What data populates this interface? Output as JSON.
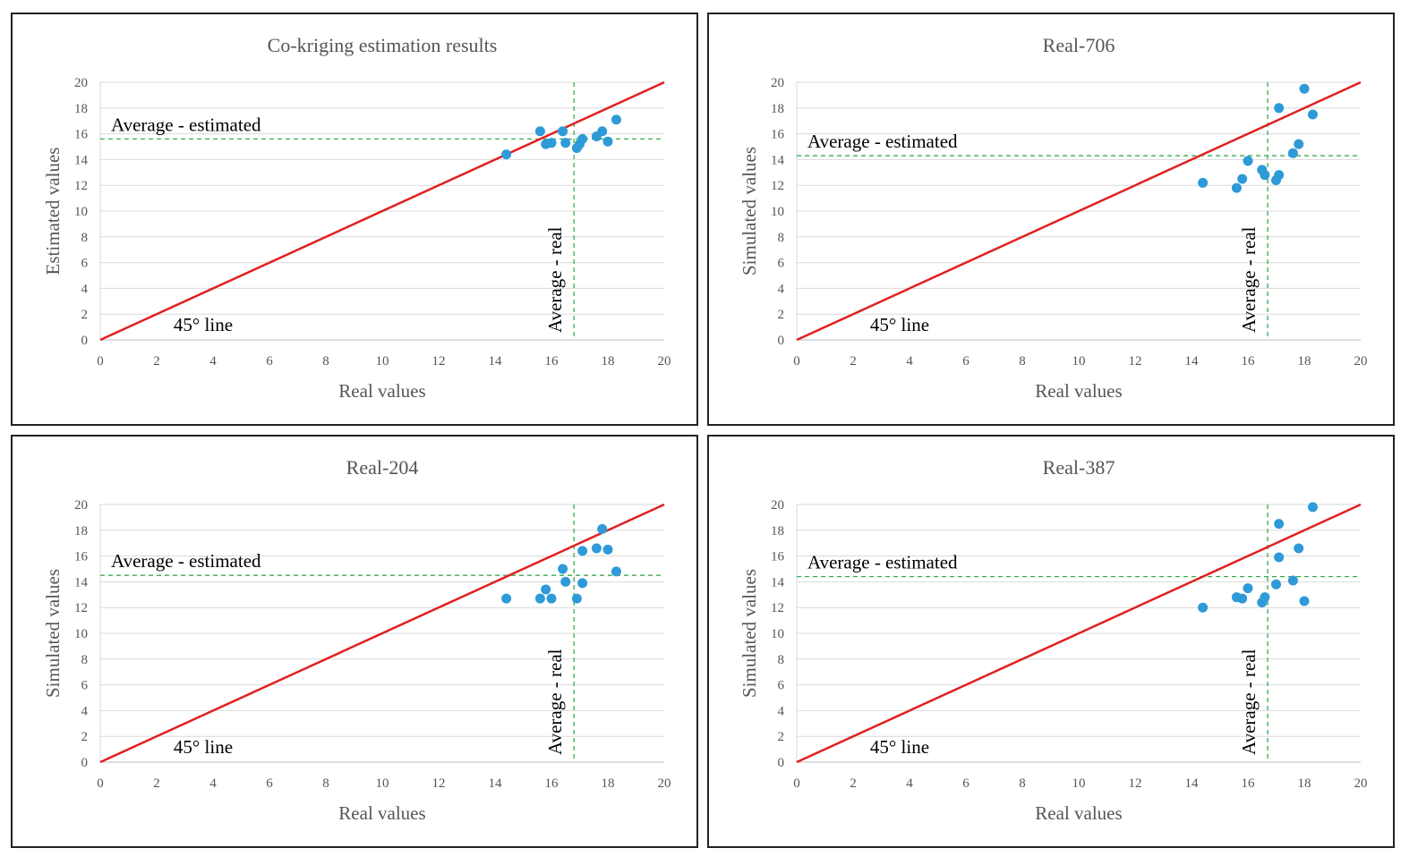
{
  "chart_data": [
    {
      "type": "scatter",
      "title": "Co-kriging  estimation  results",
      "xlabel": "Real values",
      "ylabel": "Estimated  values",
      "xlim": [
        0,
        20
      ],
      "ylim": [
        0,
        20
      ],
      "xticks": [
        "0",
        "2",
        "4",
        "6",
        "8",
        "10",
        "12",
        "14",
        "16",
        "18",
        "20"
      ],
      "yticks": [
        "0",
        "2",
        "4",
        "6",
        "8",
        "10",
        "12",
        "14",
        "16",
        "18",
        "20"
      ],
      "grid": true,
      "reference_line": {
        "label": "45° line",
        "from": [
          0,
          0
        ],
        "to": [
          20,
          20
        ],
        "color": "#e02020"
      },
      "avg_estimated": {
        "label": "Average - estimated",
        "value": 15.6
      },
      "avg_real": {
        "label": "Average - real",
        "value": 16.8
      },
      "point_color": "#2e9ad8",
      "points": [
        {
          "x": 14.4,
          "y": 14.4
        },
        {
          "x": 15.6,
          "y": 16.2
        },
        {
          "x": 15.8,
          "y": 15.2
        },
        {
          "x": 16.0,
          "y": 15.3
        },
        {
          "x": 16.4,
          "y": 16.2
        },
        {
          "x": 16.5,
          "y": 15.3
        },
        {
          "x": 16.9,
          "y": 14.9
        },
        {
          "x": 17.0,
          "y": 15.2
        },
        {
          "x": 17.1,
          "y": 15.6
        },
        {
          "x": 17.6,
          "y": 15.8
        },
        {
          "x": 17.8,
          "y": 16.2
        },
        {
          "x": 18.0,
          "y": 15.4
        },
        {
          "x": 18.3,
          "y": 17.1
        }
      ]
    },
    {
      "type": "scatter",
      "title": "Real-706",
      "xlabel": "Real values",
      "ylabel": "Simulated  values",
      "xlim": [
        0,
        20
      ],
      "ylim": [
        0,
        20
      ],
      "xticks": [
        "0",
        "2",
        "4",
        "6",
        "8",
        "10",
        "12",
        "14",
        "16",
        "18",
        "20"
      ],
      "yticks": [
        "0",
        "2",
        "4",
        "6",
        "8",
        "10",
        "12",
        "14",
        "16",
        "18",
        "20"
      ],
      "grid": true,
      "reference_line": {
        "label": "45° line",
        "from": [
          0,
          0
        ],
        "to": [
          20,
          20
        ],
        "color": "#e02020"
      },
      "avg_estimated": {
        "label": "Average - estimated",
        "value": 14.3
      },
      "avg_real": {
        "label": "Average - real",
        "value": 16.7
      },
      "point_color": "#2e9ad8",
      "points": [
        {
          "x": 14.4,
          "y": 12.2
        },
        {
          "x": 15.6,
          "y": 11.8
        },
        {
          "x": 15.8,
          "y": 12.5
        },
        {
          "x": 16.0,
          "y": 13.9
        },
        {
          "x": 16.5,
          "y": 13.2
        },
        {
          "x": 16.6,
          "y": 12.8
        },
        {
          "x": 17.0,
          "y": 12.4
        },
        {
          "x": 17.1,
          "y": 12.8
        },
        {
          "x": 17.1,
          "y": 18.0
        },
        {
          "x": 17.6,
          "y": 14.5
        },
        {
          "x": 17.8,
          "y": 15.2
        },
        {
          "x": 18.0,
          "y": 19.5
        },
        {
          "x": 18.3,
          "y": 17.5
        }
      ]
    },
    {
      "type": "scatter",
      "title": "Real-204",
      "xlabel": "Real values",
      "ylabel": "Simulated  values",
      "xlim": [
        0,
        20
      ],
      "ylim": [
        0,
        20
      ],
      "xticks": [
        "0",
        "2",
        "4",
        "6",
        "8",
        "10",
        "12",
        "14",
        "16",
        "18",
        "20"
      ],
      "yticks": [
        "0",
        "2",
        "4",
        "6",
        "8",
        "10",
        "12",
        "14",
        "16",
        "18",
        "20"
      ],
      "grid": true,
      "reference_line": {
        "label": "45° line",
        "from": [
          0,
          0
        ],
        "to": [
          20,
          20
        ],
        "color": "#e02020"
      },
      "avg_estimated": {
        "label": "Average - estimated",
        "value": 14.5
      },
      "avg_real": {
        "label": "Average - real",
        "value": 16.8
      },
      "point_color": "#2e9ad8",
      "points": [
        {
          "x": 14.4,
          "y": 12.7
        },
        {
          "x": 15.6,
          "y": 12.7
        },
        {
          "x": 15.8,
          "y": 13.4
        },
        {
          "x": 16.0,
          "y": 12.7
        },
        {
          "x": 16.4,
          "y": 15.0
        },
        {
          "x": 16.5,
          "y": 14.0
        },
        {
          "x": 16.9,
          "y": 12.7
        },
        {
          "x": 17.1,
          "y": 13.9
        },
        {
          "x": 17.1,
          "y": 16.4
        },
        {
          "x": 17.6,
          "y": 16.6
        },
        {
          "x": 17.8,
          "y": 18.1
        },
        {
          "x": 18.0,
          "y": 16.5
        },
        {
          "x": 18.3,
          "y": 14.8
        }
      ]
    },
    {
      "type": "scatter",
      "title": "Real-387",
      "xlabel": "Real values",
      "ylabel": "Simulated  values",
      "xlim": [
        0,
        20
      ],
      "ylim": [
        0,
        20
      ],
      "xticks": [
        "0",
        "2",
        "4",
        "6",
        "8",
        "10",
        "12",
        "14",
        "16",
        "18",
        "20"
      ],
      "yticks": [
        "0",
        "2",
        "4",
        "6",
        "8",
        "10",
        "12",
        "14",
        "16",
        "18",
        "20"
      ],
      "grid": true,
      "reference_line": {
        "label": "45° line",
        "from": [
          0,
          0
        ],
        "to": [
          20,
          20
        ],
        "color": "#e02020"
      },
      "avg_estimated": {
        "label": "Average - estimated",
        "value": 14.4
      },
      "avg_real": {
        "label": "Average - real",
        "value": 16.7
      },
      "point_color": "#2e9ad8",
      "points": [
        {
          "x": 14.4,
          "y": 12.0
        },
        {
          "x": 15.6,
          "y": 12.8
        },
        {
          "x": 15.8,
          "y": 12.7
        },
        {
          "x": 16.0,
          "y": 13.5
        },
        {
          "x": 16.5,
          "y": 12.4
        },
        {
          "x": 16.6,
          "y": 12.8
        },
        {
          "x": 17.0,
          "y": 13.8
        },
        {
          "x": 17.1,
          "y": 15.9
        },
        {
          "x": 17.1,
          "y": 18.5
        },
        {
          "x": 17.6,
          "y": 14.1
        },
        {
          "x": 17.8,
          "y": 16.6
        },
        {
          "x": 18.0,
          "y": 12.5
        },
        {
          "x": 18.3,
          "y": 19.8
        }
      ]
    }
  ]
}
